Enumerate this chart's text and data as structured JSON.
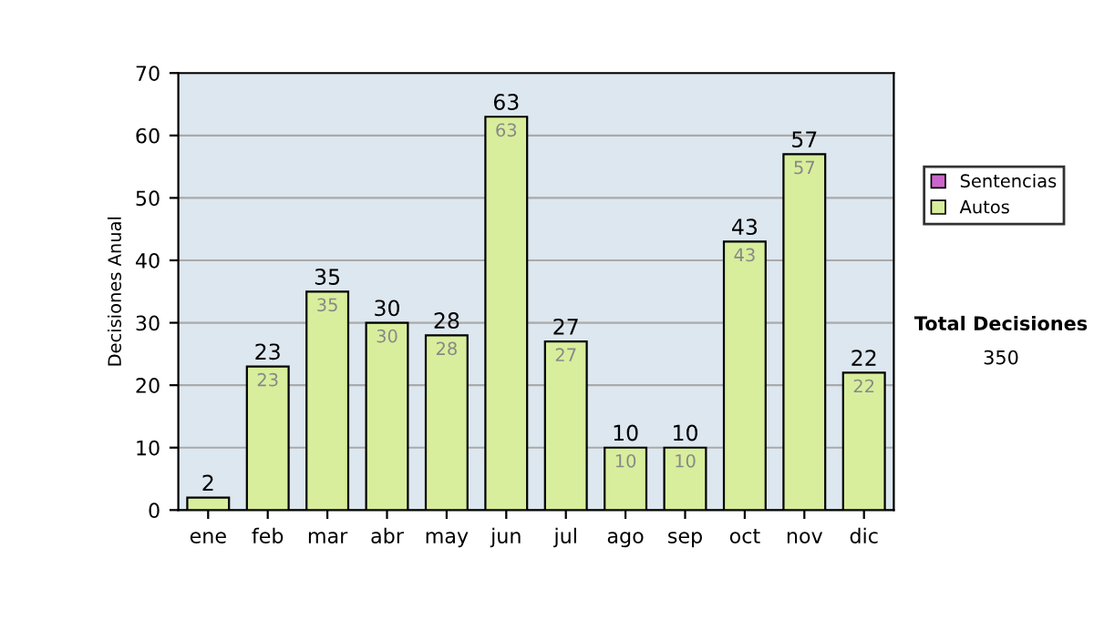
{
  "chart_data": {
    "type": "bar",
    "stacked": true,
    "ylabel": "Decisiones Anual",
    "categories": [
      "ene",
      "feb",
      "mar",
      "abr",
      "may",
      "jun",
      "jul",
      "ago",
      "sep",
      "oct",
      "nov",
      "dic"
    ],
    "series": [
      {
        "name": "Sentencias",
        "color": "#cc66cc",
        "values": [
          0,
          0,
          0,
          0,
          0,
          0,
          0,
          0,
          0,
          0,
          0,
          0
        ]
      },
      {
        "name": "Autos",
        "color": "#d8ee9c",
        "values": [
          2,
          23,
          35,
          30,
          28,
          63,
          27,
          10,
          10,
          43,
          57,
          22
        ],
        "value_labels": [
          null,
          "23",
          "35",
          "30",
          "28",
          "63",
          "27",
          "10",
          "10",
          "43",
          "57",
          "22"
        ]
      }
    ],
    "totals": [
      "2",
      "23",
      "35",
      "30",
      "28",
      "63",
      "27",
      "10",
      "10",
      "43",
      "57",
      "22"
    ],
    "ylim": [
      0,
      70
    ],
    "yticks": [
      0,
      10,
      20,
      30,
      40,
      50,
      60,
      70
    ],
    "grid": "y",
    "legend": "right",
    "annotations": [
      "Total Decisiones",
      "350"
    ]
  }
}
